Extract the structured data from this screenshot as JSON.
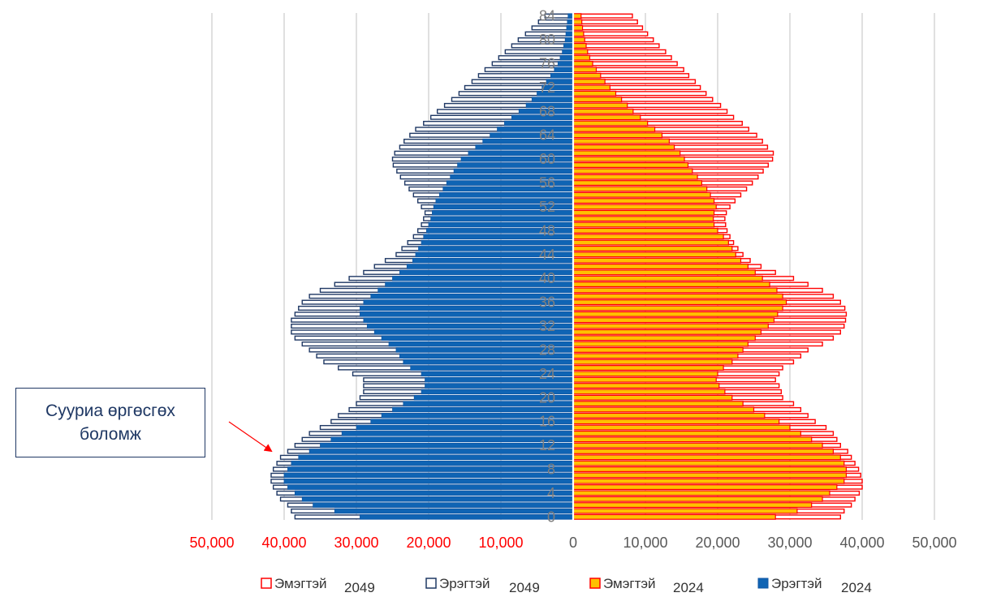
{
  "chart_data": {
    "type": "bar",
    "orientation": "horizontal-population-pyramid",
    "age_labels": [
      "0",
      "4",
      "8",
      "12",
      "16",
      "20",
      "24",
      "28",
      "32",
      "36",
      "40",
      "44",
      "48",
      "52",
      "56",
      "60",
      "64",
      "68",
      "72",
      "76",
      "80",
      "84"
    ],
    "ages_from": 0,
    "ages_to": 84,
    "xlim": [
      -50000,
      50000
    ],
    "x_ticks": [
      {
        "value": -50000,
        "label": "50,000"
      },
      {
        "value": -40000,
        "label": "40,000"
      },
      {
        "value": -30000,
        "label": "30,000"
      },
      {
        "value": -20000,
        "label": "20,000"
      },
      {
        "value": -10000,
        "label": "10,000"
      },
      {
        "value": 0,
        "label": "0"
      },
      {
        "value": 10000,
        "label": "10,000"
      },
      {
        "value": 20000,
        "label": "20,000"
      },
      {
        "value": 30000,
        "label": "30,000"
      },
      {
        "value": 40000,
        "label": "40,000"
      },
      {
        "value": 50000,
        "label": "50,000"
      }
    ],
    "left_tick_color": "#ff0000",
    "right_tick_color": "#595959",
    "grid": true,
    "legend_position": "bottom",
    "series": [
      {
        "name": "Эмэгтэй",
        "year": "2049",
        "side": "right",
        "style": "outline",
        "stroke": "#ff0000",
        "fill": "#ffffff",
        "values_by_age": [
          37000,
          37500,
          38500,
          39000,
          39600,
          40000,
          40000,
          39800,
          39500,
          39000,
          38500,
          38000,
          37000,
          36500,
          36000,
          35000,
          33500,
          32500,
          31500,
          30500,
          29000,
          28800,
          28500,
          28000,
          28500,
          29000,
          30500,
          31500,
          32500,
          34500,
          36000,
          37000,
          37500,
          37700,
          37800,
          37600,
          37000,
          36000,
          34500,
          32500,
          30500,
          28000,
          26000,
          24500,
          23500,
          22800,
          22200,
          21700,
          21300,
          21100,
          21000,
          21200,
          21700,
          22400,
          23200,
          24000,
          24800,
          25600,
          26300,
          27000,
          27600,
          27700,
          26900,
          26200,
          25400,
          24300,
          23400,
          22200,
          21300,
          20400,
          19300,
          18400,
          17600,
          16900,
          16000,
          15300,
          14400,
          13600,
          12800,
          11900,
          11100,
          10300,
          9600,
          8900,
          8200
        ]
      },
      {
        "name": "Эрэгтэй",
        "year": "2049",
        "side": "left",
        "style": "outline",
        "stroke": "#1f3864",
        "fill": "#ffffff",
        "values_by_age": [
          38500,
          39000,
          39500,
          40500,
          41000,
          41500,
          41800,
          41800,
          41500,
          41000,
          40500,
          39500,
          38500,
          37500,
          36500,
          35000,
          33500,
          32500,
          31000,
          30000,
          29500,
          29000,
          29000,
          29000,
          30500,
          32500,
          34500,
          35500,
          36500,
          37500,
          38500,
          39000,
          39000,
          39000,
          38500,
          38000,
          37500,
          36500,
          35000,
          33000,
          31000,
          29000,
          27500,
          26000,
          24500,
          23700,
          22900,
          22100,
          21500,
          21000,
          20700,
          20500,
          21000,
          21500,
          22100,
          22700,
          23300,
          23900,
          24400,
          24900,
          25000,
          24700,
          24000,
          23400,
          22600,
          21800,
          20700,
          19700,
          18800,
          17800,
          16800,
          15800,
          15000,
          14000,
          13100,
          12200,
          11200,
          10300,
          9400,
          8500,
          7600,
          6600,
          5700,
          4800,
          3900
        ]
      },
      {
        "name": "Эмэгтэй",
        "year": "2024",
        "side": "right",
        "style": "hatched",
        "stroke": "#ff0000",
        "fill": "#ffc000",
        "values_by_age": [
          28000,
          31000,
          33000,
          34500,
          35500,
          36500,
          37500,
          37800,
          37800,
          37500,
          37000,
          36000,
          34500,
          33000,
          31500,
          30000,
          28500,
          26500,
          25000,
          23500,
          22000,
          21000,
          20200,
          19800,
          20000,
          20800,
          22000,
          22800,
          23500,
          24200,
          25200,
          26000,
          27000,
          27800,
          28300,
          29000,
          29500,
          29000,
          28200,
          27200,
          26200,
          25200,
          24200,
          23200,
          22500,
          22000,
          21500,
          20800,
          20000,
          19500,
          19400,
          19500,
          19800,
          19500,
          19000,
          18500,
          17800,
          17200,
          16500,
          15900,
          15400,
          14800,
          14000,
          13300,
          12300,
          11300,
          10300,
          9300,
          8300,
          7500,
          6700,
          5900,
          5100,
          4400,
          3800,
          3200,
          2700,
          2300,
          2000,
          1800,
          1600,
          1450,
          1300,
          1200,
          1100
        ]
      },
      {
        "name": "Эрэгтэй",
        "year": "2024",
        "side": "left",
        "style": "solid",
        "stroke": "#0f56a4",
        "fill": "#0f64b4",
        "values_by_age": [
          29500,
          33000,
          36000,
          37500,
          38500,
          39500,
          40000,
          40000,
          39500,
          39000,
          38000,
          36500,
          35000,
          33500,
          32000,
          30000,
          28000,
          26500,
          25000,
          23500,
          22000,
          21000,
          20500,
          20500,
          21000,
          22500,
          23500,
          24000,
          24500,
          25500,
          26500,
          27500,
          28500,
          29000,
          29500,
          29500,
          29000,
          28000,
          27000,
          26000,
          25000,
          24000,
          23000,
          22200,
          21800,
          21400,
          21000,
          20700,
          20300,
          20000,
          19700,
          19500,
          19300,
          19000,
          18500,
          18000,
          17500,
          17000,
          16500,
          16000,
          15500,
          14500,
          13500,
          12500,
          11500,
          10500,
          9500,
          8500,
          7500,
          6500,
          5700,
          5000,
          4300,
          3700,
          3100,
          2600,
          2100,
          1800,
          1500,
          1300,
          1100,
          1000,
          900,
          800,
          700
        ]
      }
    ],
    "legend": [
      {
        "name": "Эмэгтэй",
        "year": "2049",
        "marker": "outline-red"
      },
      {
        "name": "Эрэгтэй",
        "year": "2049",
        "marker": "outline-navy"
      },
      {
        "name": "Эмэгтэй",
        "year": "2024",
        "marker": "orange-red"
      },
      {
        "name": "Эрэгтэй",
        "year": "2024",
        "marker": "solid-blue"
      }
    ],
    "annotation": {
      "line1": "Сууриа өргөсгөх",
      "line2": "боломж",
      "points_to_age": 10
    }
  }
}
